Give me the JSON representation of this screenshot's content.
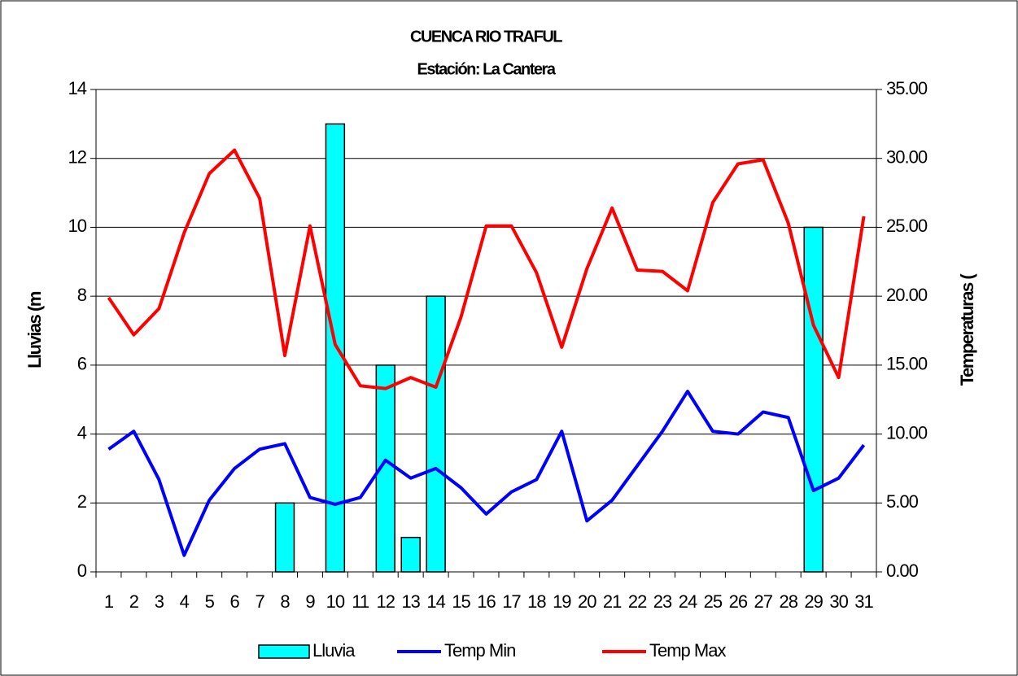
{
  "chart_data": {
    "type": "bar",
    "title": "CUENCA RIO TRAFUL",
    "subtitle": "Estación: La Cantera",
    "y_label": "Lluvias (m",
    "y2_label": "Temperaturas (",
    "categories": [
      "1",
      "2",
      "3",
      "4",
      "5",
      "6",
      "7",
      "8",
      "9",
      "10",
      "11",
      "12",
      "13",
      "14",
      "15",
      "16",
      "17",
      "18",
      "19",
      "20",
      "21",
      "22",
      "23",
      "24",
      "25",
      "26",
      "27",
      "28",
      "29",
      "30",
      "31"
    ],
    "series": [
      {
        "name": "Lluvia",
        "type": "bar",
        "color": "#00ffff",
        "axis": "y",
        "values": [
          0,
          0,
          0,
          0,
          0,
          0,
          0,
          2,
          0,
          13,
          0,
          6,
          1,
          8,
          0,
          0,
          0,
          0,
          0,
          0,
          0,
          0,
          0,
          0,
          0,
          0,
          0,
          0,
          10,
          0,
          0
        ]
      },
      {
        "name": "Temp Min",
        "type": "line",
        "color": "#0000ff",
        "axis": "y2",
        "values": [
          8.9,
          10.2,
          6.7,
          1.2,
          5.2,
          7.5,
          8.9,
          9.3,
          5.4,
          4.9,
          5.4,
          8.1,
          6.8,
          7.5,
          6.1,
          4.2,
          5.8,
          6.7,
          10.2,
          3.7,
          5.2,
          7.7,
          10.2,
          13.1,
          10.2,
          10.0,
          11.6,
          11.2,
          5.9,
          6.8,
          9.2
        ]
      },
      {
        "name": "Temp Max",
        "type": "line",
        "color": "#ff0000",
        "axis": "y2",
        "values": [
          19.9,
          17.2,
          19.1,
          24.6,
          28.9,
          30.6,
          27.1,
          15.7,
          25.1,
          16.5,
          13.5,
          13.3,
          14.1,
          13.4,
          18.5,
          25.1,
          25.1,
          21.7,
          16.3,
          22.0,
          26.4,
          21.9,
          21.8,
          20.4,
          26.8,
          29.6,
          29.9,
          25.3,
          17.9,
          14.1,
          25.8
        ]
      }
    ],
    "ylim": [
      0,
      14
    ],
    "yticks": [
      0,
      2,
      4,
      6,
      8,
      10,
      12,
      14
    ],
    "y2lim": [
      0,
      35
    ],
    "y2ticks": [
      {
        "value": 0,
        "label": "0.00"
      },
      {
        "value": 5,
        "label": "5.00"
      },
      {
        "value": 10,
        "label": "10.00"
      },
      {
        "value": 15,
        "label": "15.00"
      },
      {
        "value": 20,
        "label": "20.00"
      },
      {
        "value": 25,
        "label": "25.00"
      },
      {
        "value": 30,
        "label": "30.00"
      },
      {
        "value": 35,
        "label": "35.00"
      }
    ],
    "grid": true,
    "legend": "bottom"
  }
}
